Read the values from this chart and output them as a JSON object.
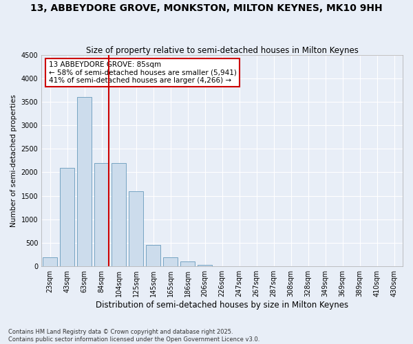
{
  "title": "13, ABBEYDORE GROVE, MONKSTON, MILTON KEYNES, MK10 9HH",
  "subtitle": "Size of property relative to semi-detached houses in Milton Keynes",
  "xlabel": "Distribution of semi-detached houses by size in Milton Keynes",
  "ylabel": "Number of semi-detached properties",
  "categories": [
    "23sqm",
    "43sqm",
    "63sqm",
    "84sqm",
    "104sqm",
    "125sqm",
    "145sqm",
    "165sqm",
    "186sqm",
    "206sqm",
    "226sqm",
    "247sqm",
    "267sqm",
    "287sqm",
    "308sqm",
    "328sqm",
    "349sqm",
    "369sqm",
    "389sqm",
    "410sqm",
    "430sqm"
  ],
  "values": [
    200,
    2100,
    3600,
    2200,
    2200,
    1600,
    450,
    200,
    100,
    30,
    10,
    5,
    3,
    2,
    1,
    1,
    0,
    0,
    0,
    0,
    0
  ],
  "bar_color": "#ccdcec",
  "bar_edge_color": "#6699bb",
  "highlight_line_label": "13 ABBEYDORE GROVE: 85sqm",
  "annotation_smaller": "← 58% of semi-detached houses are smaller (5,941)",
  "annotation_larger": "41% of semi-detached houses are larger (4,266) →",
  "annotation_box_color": "#ffffff",
  "annotation_box_edge": "#cc0000",
  "line_color": "#cc0000",
  "background_color": "#e8eef7",
  "grid_color": "#ffffff",
  "ylim": [
    0,
    4500
  ],
  "yticks": [
    0,
    500,
    1000,
    1500,
    2000,
    2500,
    3000,
    3500,
    4000,
    4500
  ],
  "title_fontsize": 10,
  "subtitle_fontsize": 8.5,
  "xlabel_fontsize": 8.5,
  "ylabel_fontsize": 7.5,
  "tick_fontsize": 7,
  "annotation_fontsize": 7.5,
  "footer_fontsize": 6,
  "footer": "Contains HM Land Registry data © Crown copyright and database right 2025.\nContains public sector information licensed under the Open Government Licence v3.0."
}
